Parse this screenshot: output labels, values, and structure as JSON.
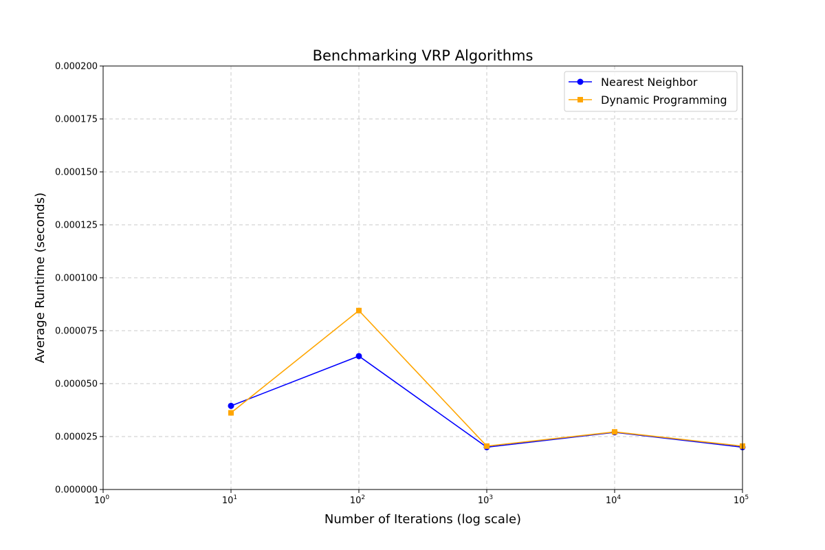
{
  "chart_data": {
    "type": "line",
    "title": "Benchmarking VRP Algorithms",
    "xlabel": "Number of Iterations (log scale)",
    "ylabel": "Average Runtime (seconds)",
    "x_scale": "log",
    "x": [
      10,
      100,
      1000,
      10000,
      100000
    ],
    "xlim": [
      1,
      100000
    ],
    "x_ticks": [
      {
        "base": "10",
        "exp": "0",
        "value": 1
      },
      {
        "base": "10",
        "exp": "1",
        "value": 10
      },
      {
        "base": "10",
        "exp": "2",
        "value": 100
      },
      {
        "base": "10",
        "exp": "3",
        "value": 1000
      },
      {
        "base": "10",
        "exp": "4",
        "value": 10000
      },
      {
        "base": "10",
        "exp": "5",
        "value": 100000
      }
    ],
    "ylim": [
      0,
      0.0002
    ],
    "y_ticks": [
      {
        "label": "0.000000",
        "value": 0
      },
      {
        "label": "0.000025",
        "value": 2.5e-05
      },
      {
        "label": "0.000050",
        "value": 5e-05
      },
      {
        "label": "0.000075",
        "value": 7.5e-05
      },
      {
        "label": "0.000100",
        "value": 0.0001
      },
      {
        "label": "0.000125",
        "value": 0.000125
      },
      {
        "label": "0.000150",
        "value": 0.00015
      },
      {
        "label": "0.000175",
        "value": 0.000175
      },
      {
        "label": "0.000200",
        "value": 0.0002
      }
    ],
    "grid": true,
    "legend_position": "top-right",
    "series": [
      {
        "name": "Nearest Neighbor",
        "color": "#0000ff",
        "marker": "circle",
        "values": [
          3.95e-05,
          6.3e-05,
          2e-05,
          2.7e-05,
          2e-05
        ]
      },
      {
        "name": "Dynamic Programming",
        "color": "#ffa500",
        "marker": "square",
        "values": [
          3.62e-05,
          8.45e-05,
          2.05e-05,
          2.72e-05,
          2.05e-05
        ]
      }
    ]
  }
}
